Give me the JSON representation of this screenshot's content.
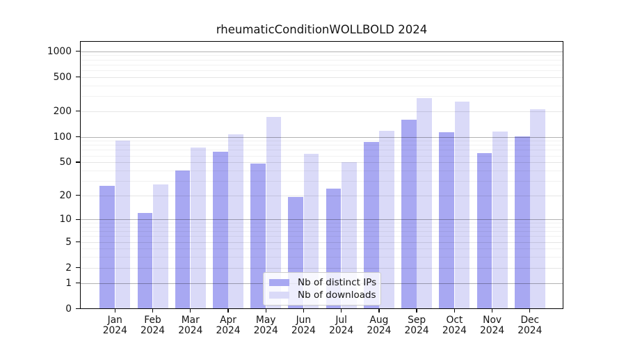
{
  "chart_data": {
    "type": "bar",
    "title": "rheumaticConditionWOLLBOLD 2024",
    "categories": [
      "Jan 2024",
      "Feb 2024",
      "Mar 2024",
      "Apr 2024",
      "May 2024",
      "Jun 2024",
      "Jul 2024",
      "Aug 2024",
      "Sep 2024",
      "Oct 2024",
      "Nov 2024",
      "Dec 2024"
    ],
    "series": [
      {
        "name": "Nb of distinct IPs",
        "color": "#a8a8f2",
        "values": [
          26,
          12,
          40,
          67,
          48,
          19,
          24,
          86,
          158,
          112,
          64,
          100
        ]
      },
      {
        "name": "Nb of downloads",
        "color": "#dadaf8",
        "values": [
          90,
          27,
          75,
          106,
          170,
          63,
          50,
          118,
          283,
          258,
          115,
          210
        ]
      }
    ],
    "yscale": "log1p",
    "yticks": [
      0,
      1,
      2,
      5,
      10,
      20,
      50,
      100,
      200,
      500,
      1000
    ],
    "ylim": [
      0,
      1300
    ],
    "xlabel": "",
    "ylabel": "",
    "grid": true,
    "legend_position": "lower-center",
    "colors": {
      "major_grid": "#b3b3b3",
      "minor_grid": "#ededed",
      "axis": "#000000",
      "text": "#141414",
      "background": "#ffffff"
    }
  }
}
